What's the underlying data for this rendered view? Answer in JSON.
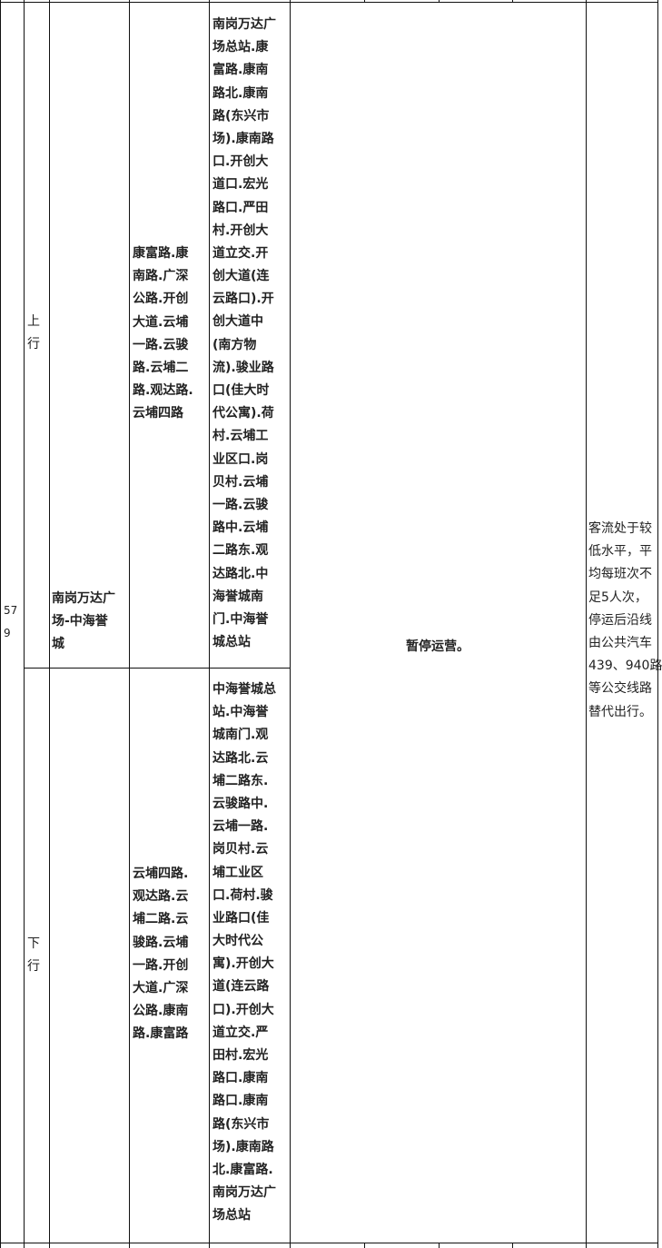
{
  "table": {
    "route_number": [
      "57",
      "9"
    ],
    "route_name": [
      "南岗万达广",
      "场-中海誉",
      "城"
    ],
    "status": "暂停运营。",
    "remark": [
      "客流处于较",
      "低水平，平",
      "均每班次不",
      "足5人次，",
      "停运后沿线",
      "由公共汽车",
      "439、940路",
      "等公交线路",
      "替代出行。"
    ],
    "up": {
      "direction": [
        "上",
        "行"
      ],
      "roads": [
        "康富路.康",
        "南路.广深",
        "公路.开创",
        "大道.云埔",
        "一路.云骏",
        "路.云埔二",
        "路.观达路.",
        "云埔四路"
      ],
      "stops": [
        "南岗万达广",
        "场总站.康",
        "富路.康南",
        "路北.康南",
        "路(东兴市",
        "场).康南路",
        "口.开创大",
        "道口.宏光",
        "路口.严田",
        "村.开创大",
        "道立交.开",
        "创大道(连",
        "云路口).开",
        "创大道中",
        "(南方物",
        "流).骏业路",
        "口(佳大时",
        "代公寓).荷",
        "村.云埔工",
        "业区口.岗",
        "贝村.云埔",
        "一路.云骏",
        "路中.云埔",
        "二路东.观",
        "达路北.中",
        "海誉城南",
        "门.中海誉",
        "城总站"
      ]
    },
    "down": {
      "direction": [
        "下",
        "行"
      ],
      "roads": [
        "云埔四路.",
        "观达路.云",
        "埔二路.云",
        "骏路.云埔",
        "一路.开创",
        "大道.广深",
        "公路.康南",
        "路.康富路"
      ],
      "stops": [
        "中海誉城总",
        "站.中海誉",
        "城南门.观",
        "达路北.云",
        "埔二路东.",
        "云骏路中.",
        "云埔一路.",
        "岗贝村.云",
        "埔工业区",
        "口.荷村.骏",
        "业路口(佳",
        "大时代公",
        "寓).开创大",
        "道(连云路",
        "口).开创大",
        "道立交.严",
        "田村.宏光",
        "路口.康南",
        "路口.康南",
        "路(东兴市",
        "场).康南路",
        "北.康富路.",
        "南岗万达广",
        "场总站"
      ]
    }
  }
}
